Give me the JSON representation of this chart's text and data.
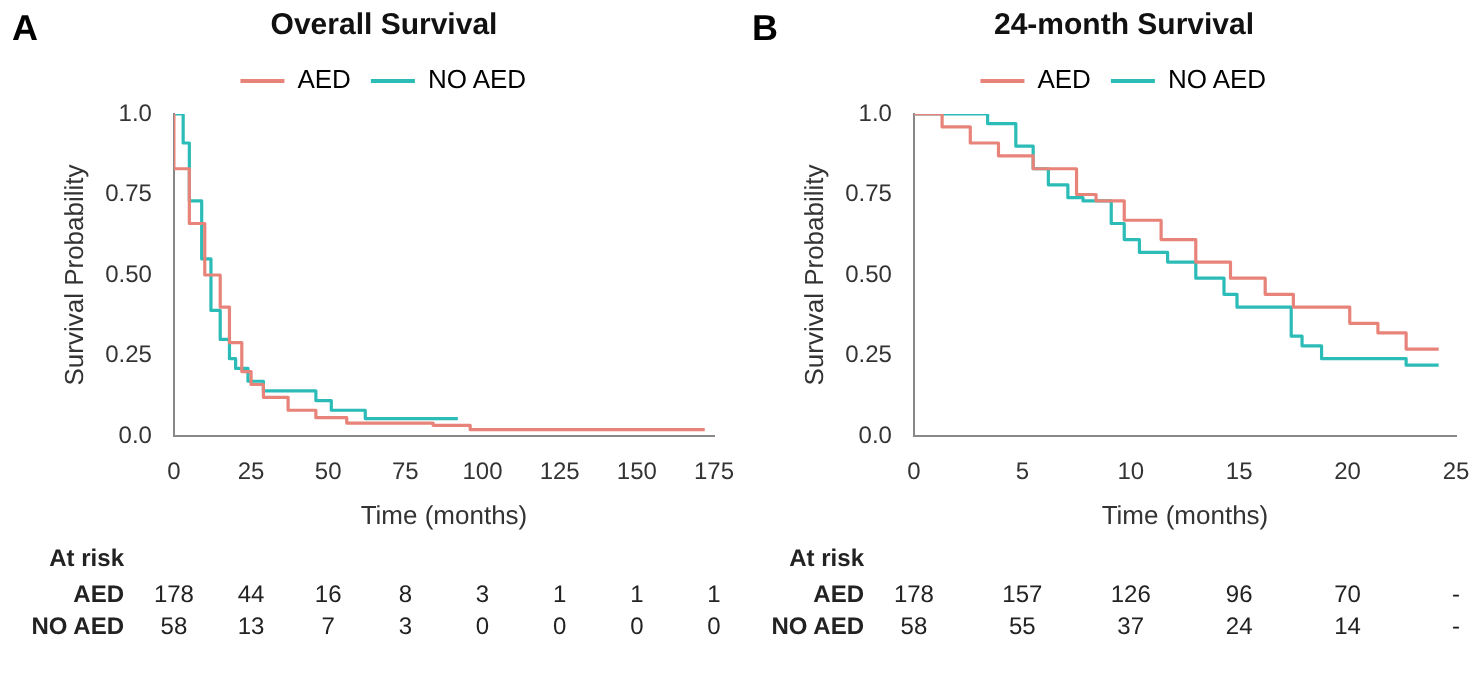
{
  "chart_data": [
    {
      "type": "step",
      "title": "Overall Survival",
      "xlabel": "Time (months)",
      "ylabel": "Survival Probability",
      "legend": "top",
      "grid": false,
      "xlim": [
        0,
        175
      ],
      "xticks": [
        0,
        25,
        50,
        75,
        100,
        125,
        150,
        175
      ],
      "ylim": [
        0,
        1
      ],
      "yticks": [
        {
          "value": 0,
          "label": "0.0"
        },
        {
          "value": 0.25,
          "label": "0.25"
        },
        {
          "value": 0.5,
          "label": "0.50"
        },
        {
          "value": 0.75,
          "label": "0.75"
        },
        {
          "value": 1,
          "label": "1.0"
        }
      ],
      "series": [
        {
          "name": "AED",
          "color": "#e8837a",
          "x": [
            0,
            5,
            10,
            15,
            18,
            22,
            25,
            29,
            37,
            46,
            56,
            65,
            84,
            96,
            105,
            172
          ],
          "values": [
            1.0,
            0.83,
            0.66,
            0.5,
            0.4,
            0.29,
            0.2,
            0.16,
            0.12,
            0.08,
            0.057,
            0.04,
            0.04,
            0.033,
            0.02,
            0.02
          ]
        },
        {
          "name": "NO AED",
          "color": "#2bbcb8",
          "x": [
            0,
            3,
            5,
            9,
            12,
            15,
            18,
            20,
            24,
            29,
            37,
            46,
            51,
            62,
            85,
            92
          ],
          "values": [
            1.0,
            1.0,
            0.91,
            0.73,
            0.55,
            0.39,
            0.3,
            0.24,
            0.21,
            0.17,
            0.14,
            0.14,
            0.11,
            0.08,
            0.054,
            0.054
          ]
        }
      ],
      "annotations": [
        "A",
        "At risk",
        "AED",
        "178",
        "44",
        "16",
        "8",
        "3",
        "1",
        "1",
        "1",
        "NO AED",
        "58",
        "13",
        "7",
        "3",
        "0",
        "0",
        "0",
        "0"
      ]
    },
    {
      "type": "step",
      "title": "24-month Survival",
      "xlabel": "Time (months)",
      "ylabel": "Survival Probability",
      "legend": "top",
      "grid": false,
      "xlim": [
        0,
        25
      ],
      "xticks": [
        0,
        5,
        10,
        15,
        20,
        25
      ],
      "ylim": [
        0,
        1
      ],
      "yticks": [
        {
          "value": 0,
          "label": "0.0"
        },
        {
          "value": 0.25,
          "label": "0.25"
        },
        {
          "value": 0.5,
          "label": "0.50"
        },
        {
          "value": 0.75,
          "label": "0.75"
        },
        {
          "value": 1,
          "label": "1.0"
        }
      ],
      "series": [
        {
          "name": "AED",
          "color": "#e8837a",
          "x": [
            0,
            1.3,
            2.6,
            3.9,
            5.5,
            6.5,
            7.5,
            8.4,
            9.7,
            11.4,
            13,
            14.6,
            16.2,
            17.5,
            18.5,
            20.1,
            21.4,
            22.7,
            24.2
          ],
          "values": [
            1.0,
            1.0,
            0.96,
            0.91,
            0.87,
            0.83,
            0.83,
            0.75,
            0.73,
            0.67,
            0.61,
            0.54,
            0.49,
            0.44,
            0.4,
            0.4,
            0.35,
            0.32,
            0.27
          ]
        },
        {
          "name": "NO AED",
          "color": "#2bbcb8",
          "x": [
            0,
            3.4,
            3.7,
            4.7,
            5.5,
            6.2,
            7.1,
            7.8,
            9.1,
            9.7,
            10.4,
            11.7,
            13,
            13.5,
            14.3,
            14.9,
            15.4,
            17.4,
            17.9,
            18.8,
            19.8,
            22.7,
            22.9,
            24.2
          ],
          "values": [
            1.0,
            1.0,
            0.97,
            0.97,
            0.9,
            0.83,
            0.78,
            0.74,
            0.73,
            0.66,
            0.61,
            0.57,
            0.54,
            0.49,
            0.49,
            0.44,
            0.4,
            0.4,
            0.31,
            0.28,
            0.24,
            0.24,
            0.22,
            0.22
          ]
        }
      ],
      "annotations": [
        "B",
        "At risk",
        "AED",
        "178",
        "157",
        "126",
        "96",
        "70",
        "-",
        "NO AED",
        "58",
        "55",
        "37",
        "24",
        "14",
        "-"
      ]
    }
  ]
}
